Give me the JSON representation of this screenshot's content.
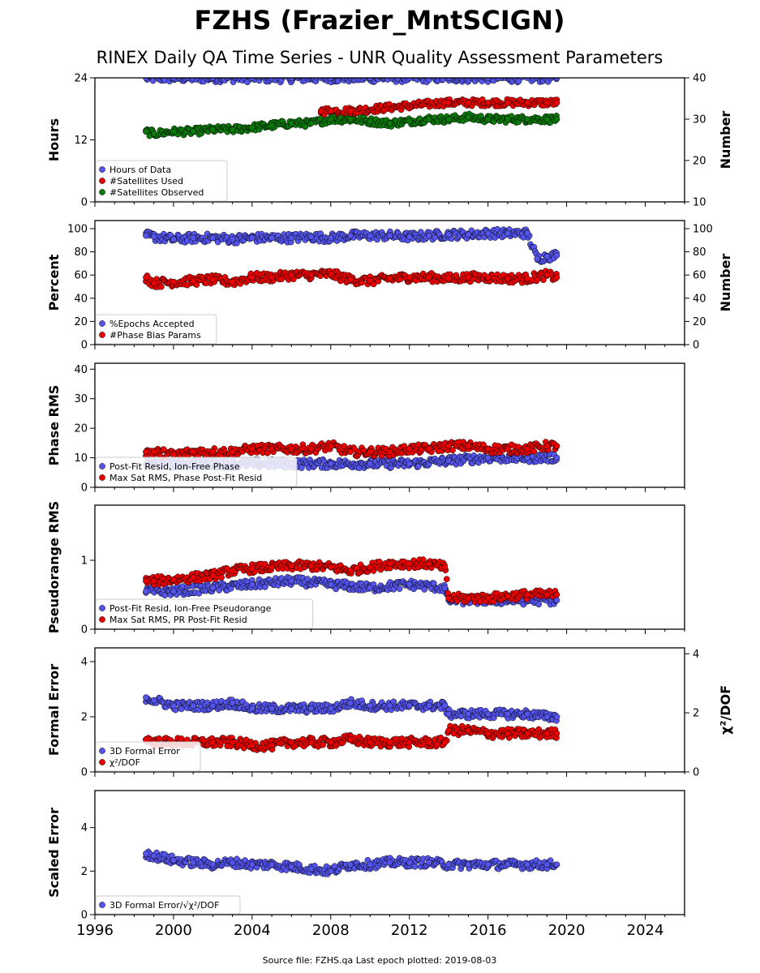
{
  "title": "FZHS (Frazier_MntSCIGN)",
  "subtitle": "RINEX Daily QA Time Series - UNR Quality Assessment Parameters",
  "footer": "Source file: FZHS.qa Last epoch plotted: 2019-08-03",
  "colors": {
    "blue": "#5555ee",
    "red": "#ee0000",
    "green": "#0a7a0a",
    "edge": "#000000"
  },
  "x_axis": {
    "min": 1996,
    "max": 2026,
    "ticks": [
      1996,
      2000,
      2004,
      2008,
      2012,
      2016,
      2020,
      2024
    ]
  },
  "chart_data": [
    {
      "type": "scatter",
      "ylabel": "Hours",
      "y2label": "Number",
      "ylim": [
        0,
        24
      ],
      "yticks": [
        0,
        12,
        24
      ],
      "y2lim": [
        10,
        40
      ],
      "y2ticks": [
        10,
        20,
        30,
        40
      ],
      "legend_position": "lower-left",
      "series": [
        {
          "name": "Hours of Data",
          "color": "blue",
          "axis": "left",
          "x": [
            1998.6,
            2000,
            2002,
            2004,
            2006,
            2008,
            2010,
            2012,
            2014,
            2016,
            2018,
            2019.5
          ],
          "y": [
            24,
            24,
            24,
            24,
            24,
            24,
            24,
            24,
            24,
            24,
            24,
            24
          ]
        },
        {
          "name": "#Satellites Used",
          "color": "red",
          "axis": "right",
          "x": [
            2007.5,
            2008,
            2009,
            2013.8,
            2014,
            2015,
            2016,
            2017,
            2018,
            2019,
            2019.5
          ],
          "y": [
            32,
            32,
            32,
            34,
            34,
            34,
            34,
            34,
            34,
            34,
            34
          ]
        },
        {
          "name": "#Satellites Observed",
          "color": "green",
          "axis": "right",
          "x": [
            1998.6,
            1999,
            2000,
            2001,
            2002,
            2003,
            2004,
            2005,
            2006,
            2007,
            2008,
            2009,
            2010,
            2011,
            2012,
            2013,
            2014,
            2015,
            2016,
            2017,
            2018,
            2019,
            2019.5
          ],
          "y": [
            27,
            26.5,
            27,
            27,
            27.5,
            27.5,
            28,
            28.5,
            29,
            29,
            30,
            30,
            29.5,
            29,
            29.5,
            30,
            30,
            30.5,
            30,
            30,
            30,
            30,
            30
          ]
        }
      ]
    },
    {
      "type": "scatter",
      "ylabel": "Percent",
      "y2label": "Number",
      "ylim": [
        0,
        107
      ],
      "yticks": [
        0,
        20,
        40,
        60,
        80,
        100
      ],
      "y2lim": [
        0,
        107
      ],
      "y2ticks": [
        0,
        20,
        40,
        60,
        80,
        100
      ],
      "legend_position": "lower-left",
      "series": [
        {
          "name": "%Epochs Accepted",
          "color": "blue",
          "axis": "left",
          "x": [
            1998.6,
            1999,
            2000,
            2001,
            2002,
            2003,
            2004,
            2005,
            2006,
            2007,
            2008,
            2009,
            2010,
            2011,
            2012,
            2013,
            2014,
            2015,
            2016,
            2017,
            2018,
            2018.5,
            2019,
            2019.5
          ],
          "y": [
            94,
            93,
            91,
            92,
            92,
            91,
            92,
            92,
            92,
            93,
            92,
            94,
            94,
            94,
            93,
            94,
            95,
            95,
            96,
            96,
            96,
            74,
            76,
            77
          ]
        },
        {
          "name": "#Phase Bias Params",
          "color": "red",
          "axis": "right",
          "x": [
            1998.6,
            1999,
            2000,
            2001,
            2002,
            2003,
            2004,
            2005,
            2006,
            2007,
            2008,
            2009,
            2010,
            2011,
            2012,
            2013,
            2014,
            2015,
            2016,
            2017,
            2018,
            2019,
            2019.5
          ],
          "y": [
            58,
            53,
            54,
            55,
            56,
            54,
            58,
            58,
            60,
            60,
            61,
            56,
            55,
            57,
            58,
            58,
            57,
            58,
            58,
            57,
            57,
            60,
            58
          ]
        }
      ]
    },
    {
      "type": "scatter",
      "ylabel": "Phase RMS",
      "ylim": [
        0,
        42
      ],
      "yticks": [
        0,
        10,
        20,
        30,
        40
      ],
      "legend_position": "lower-left",
      "series": [
        {
          "name": "Post-Fit Resid, Ion-Free Phase",
          "color": "blue",
          "axis": "left",
          "x": [
            1998.6,
            2000,
            2002,
            2004,
            2006,
            2008,
            2010,
            2012,
            2014,
            2016,
            2018,
            2019.5
          ],
          "y": [
            8,
            8,
            8,
            8,
            8,
            8,
            8,
            8,
            9,
            10,
            10,
            10
          ]
        },
        {
          "name": "Max Sat RMS, Phase Post-Fit Resid",
          "color": "red",
          "axis": "left",
          "x": [
            1998.6,
            1999,
            2000,
            2001,
            2002,
            2003,
            2004,
            2005,
            2006,
            2007,
            2008,
            2009,
            2010,
            2011,
            2012,
            2013,
            2014,
            2015,
            2016,
            2017,
            2018,
            2019,
            2019.5
          ],
          "y": [
            12,
            12,
            11,
            12,
            12,
            12,
            13,
            13,
            13,
            13,
            14,
            12,
            12,
            12,
            13,
            13,
            14,
            14,
            13,
            13,
            13,
            14,
            14
          ]
        }
      ]
    },
    {
      "type": "scatter",
      "ylabel": "Pseudorange RMS",
      "ylim": [
        0,
        1.8
      ],
      "yticks": [
        0,
        1
      ],
      "legend_position": "lower-left",
      "series": [
        {
          "name": "Post-Fit Resid, Ion-Free Pseudorange",
          "color": "blue",
          "axis": "left",
          "x": [
            1998.6,
            2000,
            2002,
            2004,
            2006,
            2008,
            2010,
            2012,
            2013.8,
            2014,
            2016,
            2018,
            2019.5
          ],
          "y": [
            0.55,
            0.55,
            0.6,
            0.65,
            0.7,
            0.65,
            0.6,
            0.65,
            0.6,
            0.42,
            0.42,
            0.42,
            0.42
          ]
        },
        {
          "name": "Max Sat RMS, PR Post-Fit Resid",
          "color": "red",
          "axis": "left",
          "x": [
            1998.6,
            1999,
            2000,
            2001,
            2002,
            2003,
            2004,
            2005,
            2006,
            2007,
            2008,
            2009,
            2010,
            2011,
            2012,
            2013,
            2013.8,
            2014,
            2015,
            2016,
            2017,
            2018,
            2019,
            2019.5
          ],
          "y": [
            0.7,
            0.7,
            0.72,
            0.75,
            0.78,
            0.85,
            0.88,
            0.9,
            0.92,
            0.92,
            0.9,
            0.85,
            0.9,
            0.95,
            0.95,
            0.95,
            0.9,
            0.45,
            0.45,
            0.45,
            0.48,
            0.5,
            0.5,
            0.5
          ]
        }
      ]
    },
    {
      "type": "scatter",
      "ylabel": "Formal Error",
      "y2label": "χ²/DOF",
      "ylim": [
        0,
        4.5
      ],
      "yticks": [
        0,
        2,
        4
      ],
      "y2lim": [
        0,
        4.2
      ],
      "y2ticks": [
        0,
        2,
        4
      ],
      "legend_position": "lower-left",
      "series": [
        {
          "name": "3D Formal Error",
          "color": "blue",
          "axis": "left",
          "x": [
            1998.6,
            1999,
            2000,
            2001,
            2002,
            2003,
            2004,
            2005,
            2006,
            2007,
            2008,
            2009,
            2010,
            2011,
            2012,
            2013,
            2013.8,
            2014,
            2015,
            2016,
            2017,
            2018,
            2019,
            2019.5
          ],
          "y": [
            2.7,
            2.6,
            2.4,
            2.4,
            2.4,
            2.5,
            2.3,
            2.3,
            2.3,
            2.3,
            2.3,
            2.5,
            2.4,
            2.4,
            2.4,
            2.4,
            2.4,
            2.1,
            2.1,
            2.1,
            2.1,
            2.1,
            2.0,
            2.0
          ]
        },
        {
          "name": "χ²/DOF",
          "color": "red",
          "axis": "right",
          "x": [
            1998.6,
            1999,
            2000,
            2001,
            2002,
            2003,
            2004,
            2005,
            2006,
            2007,
            2008,
            2009,
            2010,
            2011,
            2012,
            2013,
            2013.8,
            2014,
            2015,
            2016,
            2017,
            2018,
            2019,
            2019.5
          ],
          "y": [
            1.1,
            1.0,
            1.0,
            1.0,
            1.0,
            1.0,
            0.9,
            0.9,
            1.0,
            1.0,
            1.0,
            1.1,
            1.0,
            1.0,
            1.0,
            1.0,
            1.0,
            1.4,
            1.4,
            1.3,
            1.3,
            1.3,
            1.3,
            1.3
          ]
        }
      ]
    },
    {
      "type": "scatter",
      "ylabel": "Scaled Error",
      "ylim": [
        0,
        5.7
      ],
      "yticks": [
        0,
        2,
        4
      ],
      "legend_position": "lower-left",
      "series": [
        {
          "name": "3D Formal Error/√χ²/DOF",
          "color": "blue",
          "axis": "left",
          "x": [
            1998.6,
            1999,
            2000,
            2001,
            2002,
            2003,
            2004,
            2005,
            2006,
            2007,
            2008,
            2009,
            2010,
            2011,
            2012,
            2013,
            2014,
            2015,
            2016,
            2017,
            2018,
            2019,
            2019.5
          ],
          "y": [
            2.8,
            2.7,
            2.5,
            2.4,
            2.3,
            2.4,
            2.3,
            2.3,
            2.2,
            2.1,
            2.0,
            2.3,
            2.3,
            2.4,
            2.4,
            2.4,
            2.3,
            2.3,
            2.3,
            2.3,
            2.3,
            2.3,
            2.3
          ]
        }
      ]
    }
  ]
}
